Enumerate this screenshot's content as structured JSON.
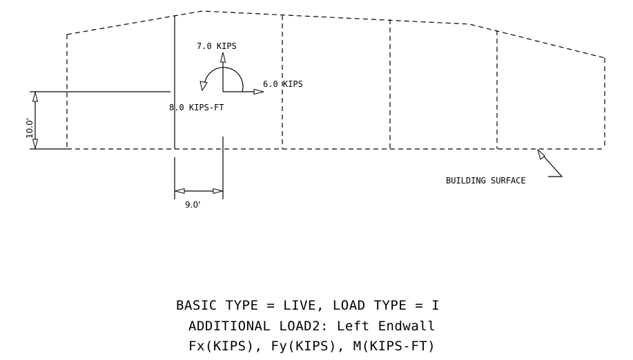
{
  "loads": {
    "fy": "7.0 KIPS",
    "fx": "6.0 KIPS",
    "moment": "8.0 KIPS-FT"
  },
  "dimensions": {
    "height": "10.0'",
    "offset": "9.0'"
  },
  "callout": {
    "surface": "BUILDING SURFACE"
  },
  "caption": {
    "line1": "BASIC TYPE = LIVE,  LOAD TYPE = I",
    "line2": "ADDITIONAL LOAD2: Left Endwall",
    "line3": "Fx(KIPS), Fy(KIPS), M(KIPS-FT)"
  }
}
